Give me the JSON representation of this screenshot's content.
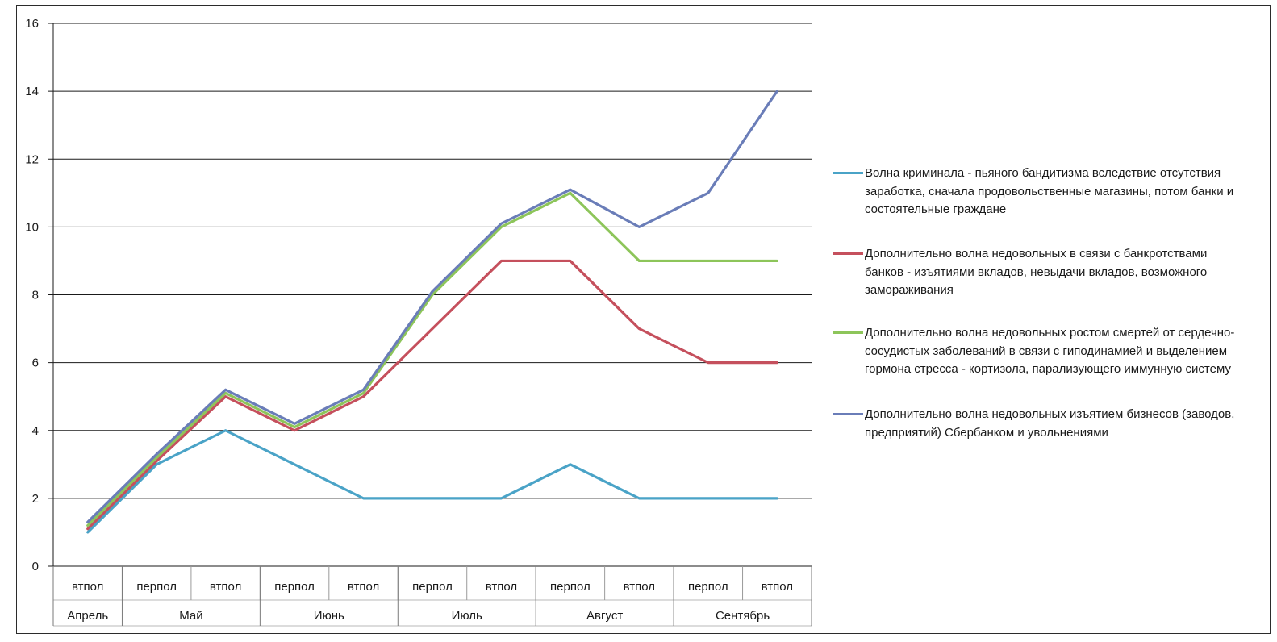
{
  "chart_data": {
    "type": "line",
    "title": "",
    "xlabel": "",
    "ylabel": "",
    "ylim": [
      0,
      16
    ],
    "yticks": [
      0,
      2,
      4,
      6,
      8,
      10,
      12,
      14,
      16
    ],
    "grid": true,
    "legend_position": "right",
    "categories": [
      "втпол",
      "перпол",
      "втпол",
      "перпол",
      "втпол",
      "перпол",
      "втпол",
      "перпол",
      "втпол",
      "перпол",
      "втпол"
    ],
    "groups": [
      {
        "label": "Апрель",
        "span": 1
      },
      {
        "label": "Май",
        "span": 2
      },
      {
        "label": "Июнь",
        "span": 2
      },
      {
        "label": "Июль",
        "span": 2
      },
      {
        "label": "Август",
        "span": 2
      },
      {
        "label": "Сентябрь",
        "span": 2
      }
    ],
    "series": [
      {
        "name": "Волна криминала - пьяного бандитизма вследствие отсутствия заработка, сначала продовольственные магазины, потом банки и состоятельные граждане",
        "color": "#4aa3c7",
        "values": [
          1,
          3,
          4,
          3,
          2,
          2,
          2,
          3,
          2,
          2,
          2
        ]
      },
      {
        "name": "Дополнительно волна недовольных в связи с банкротствами  банков - изъятиями вкладов, невыдачи вкладов, возможного замораживания",
        "color": "#c5505d",
        "values": [
          1.1,
          3.1,
          5,
          4,
          5,
          7,
          9,
          9,
          7,
          6,
          6
        ]
      },
      {
        "name": "Дополнительно волна недовольных ростом смертей от сердечно-сосудистых заболеваний в связи с гиподинамией и выделением гормона стресса - кортизола, парализующего иммунную систему",
        "color": "#8dc55a",
        "values": [
          1.2,
          3.2,
          5.1,
          4.1,
          5.1,
          8,
          10,
          11,
          9,
          9,
          9
        ]
      },
      {
        "name": "Дополнительно волна недовольных изъятием бизнесов (заводов, предприятий) Сбербанком и увольнениями",
        "color": "#6a7db8",
        "values": [
          1.3,
          3.3,
          5.2,
          4.2,
          5.2,
          8.1,
          10.1,
          11.1,
          10,
          11,
          14
        ]
      }
    ]
  },
  "colors": {
    "grid": "#1a1a1a",
    "axis_text": "#1a1a1a"
  }
}
